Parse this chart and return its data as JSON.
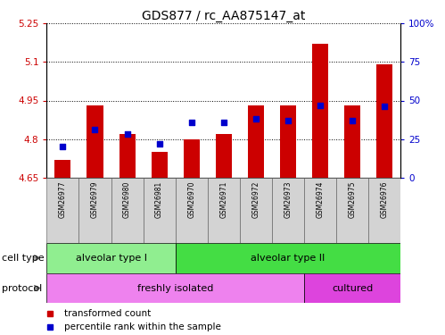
{
  "title": "GDS877 / rc_AA875147_at",
  "samples": [
    "GSM26977",
    "GSM26979",
    "GSM26980",
    "GSM26981",
    "GSM26970",
    "GSM26971",
    "GSM26972",
    "GSM26973",
    "GSM26974",
    "GSM26975",
    "GSM26976"
  ],
  "transformed_counts": [
    4.72,
    4.93,
    4.82,
    4.75,
    4.8,
    4.82,
    4.93,
    4.93,
    5.17,
    4.93,
    5.09
  ],
  "percentile_ranks": [
    20,
    31,
    28,
    22,
    36,
    36,
    38,
    37,
    47,
    37,
    46
  ],
  "ylim_left": [
    4.65,
    5.25
  ],
  "ylim_right": [
    0,
    100
  ],
  "yticks_left": [
    4.65,
    4.8,
    4.95,
    5.1,
    5.25
  ],
  "ytick_labels_left": [
    "4.65",
    "4.8",
    "4.95",
    "5.1",
    "5.25"
  ],
  "yticks_right": [
    0,
    25,
    50,
    75,
    100
  ],
  "ytick_labels_right": [
    "0",
    "25",
    "50",
    "75",
    "100%"
  ],
  "bar_color": "#cc0000",
  "dot_color": "#0000cc",
  "bar_width": 0.5,
  "cell_type_groups": [
    {
      "label": "alveolar type I",
      "start": 0,
      "end": 3,
      "color": "#90ee90"
    },
    {
      "label": "alveolar type II",
      "start": 4,
      "end": 10,
      "color": "#44dd44"
    }
  ],
  "protocol_groups": [
    {
      "label": "freshly isolated",
      "start": 0,
      "end": 7,
      "color": "#ee82ee"
    },
    {
      "label": "cultured",
      "start": 8,
      "end": 10,
      "color": "#dd44dd"
    }
  ],
  "legend_items": [
    {
      "label": "transformed count",
      "color": "#cc0000"
    },
    {
      "label": "percentile rank within the sample",
      "color": "#0000cc"
    }
  ],
  "tick_label_color_left": "#cc0000",
  "tick_label_color_right": "#0000cc",
  "title_fontsize": 10,
  "axis_fontsize": 7.5,
  "sample_fontsize": 5.5,
  "row_fontsize": 8,
  "legend_fontsize": 7.5
}
